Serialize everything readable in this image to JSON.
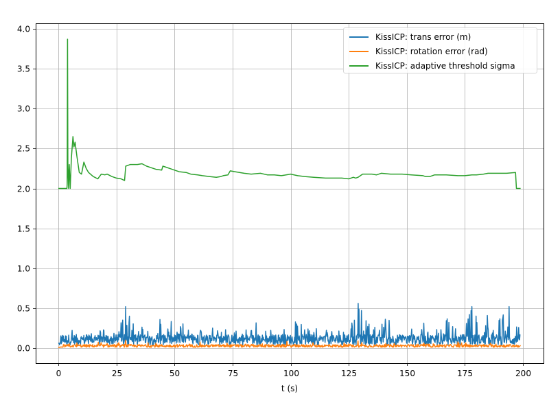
{
  "chart_data": {
    "type": "line",
    "title": "",
    "xlabel": "t (s)",
    "ylabel": "",
    "xlim": [
      -10,
      209
    ],
    "ylim": [
      -0.2,
      4.1
    ],
    "grid": true,
    "legend_position": "upper right",
    "x_ticks": [
      "0",
      "25",
      "50",
      "75",
      "100",
      "125",
      "150",
      "175",
      "200"
    ],
    "y_ticks": [
      "0.0",
      "0.5",
      "1.0",
      "1.5",
      "2.0",
      "2.5",
      "3.0",
      "3.5",
      "4.0"
    ],
    "series": [
      {
        "name": "KissICP: trans error (m)",
        "color": "#1f77b4",
        "description": "noisy signal, mostly 0.05-0.35, peaks ~0.52 at t~29, ~0.56 at t~129, ~0.52 at t~178 and t~194",
        "x": [
          0,
          5,
          10,
          15,
          20,
          25,
          29,
          35,
          40,
          45,
          50,
          55,
          60,
          65,
          70,
          75,
          80,
          85,
          90,
          95,
          100,
          105,
          110,
          115,
          120,
          125,
          129,
          135,
          140,
          145,
          150,
          155,
          160,
          165,
          170,
          175,
          178,
          185,
          190,
          194,
          199
        ],
        "values": [
          0.05,
          0.28,
          0.3,
          0.22,
          0.25,
          0.2,
          0.52,
          0.3,
          0.22,
          0.43,
          0.25,
          0.3,
          0.2,
          0.36,
          0.3,
          0.2,
          0.25,
          0.3,
          0.2,
          0.3,
          0.38,
          0.32,
          0.2,
          0.25,
          0.3,
          0.28,
          0.56,
          0.3,
          0.38,
          0.25,
          0.22,
          0.42,
          0.28,
          0.33,
          0.38,
          0.3,
          0.52,
          0.38,
          0.42,
          0.52,
          0.38
        ]
      },
      {
        "name": "KissICP: rotation error (rad)",
        "color": "#ff7f0e",
        "description": "small noisy signal near 0.0-0.05, occasional peaks ~0.1",
        "x": [
          0,
          5,
          10,
          20,
          29,
          40,
          60,
          80,
          100,
          120,
          129,
          140,
          160,
          180,
          199
        ],
        "values": [
          0.01,
          0.04,
          0.03,
          0.03,
          0.1,
          0.04,
          0.03,
          0.03,
          0.04,
          0.03,
          0.09,
          0.03,
          0.05,
          0.04,
          0.02
        ]
      },
      {
        "name": "KissICP: adaptive threshold sigma",
        "color": "#2ca02c",
        "x": [
          0,
          3.7,
          3.8,
          3.95,
          4.1,
          4.4,
          4.7,
          5.1,
          5.6,
          6.3,
          6.7,
          7.2,
          8,
          9,
          10,
          11,
          12,
          13,
          15,
          17,
          18.5,
          20,
          21,
          23,
          25,
          27,
          28.5,
          29,
          30,
          31,
          32,
          34,
          36,
          38,
          40,
          42,
          44.5,
          45,
          46,
          48,
          50,
          52,
          55,
          57,
          60,
          62,
          65,
          68,
          70,
          71,
          73,
          74,
          76,
          80,
          83,
          87,
          90,
          93,
          96,
          100,
          103,
          106,
          110,
          115,
          120,
          122,
          125,
          126,
          127,
          128,
          129,
          131,
          135,
          137,
          139,
          143,
          148,
          152,
          157,
          158,
          160,
          162,
          167,
          172,
          175,
          178,
          180,
          183,
          185,
          188,
          190,
          193,
          196.8,
          197.2,
          199
        ],
        "values": [
          2.0,
          2.0,
          2.05,
          3.87,
          2.3,
          2.0,
          2.3,
          2.0,
          2.38,
          2.65,
          2.52,
          2.58,
          2.4,
          2.2,
          2.18,
          2.33,
          2.25,
          2.2,
          2.15,
          2.12,
          2.18,
          2.17,
          2.18,
          2.15,
          2.13,
          2.12,
          2.1,
          2.28,
          2.29,
          2.3,
          2.3,
          2.3,
          2.31,
          2.28,
          2.26,
          2.24,
          2.23,
          2.28,
          2.27,
          2.25,
          2.23,
          2.21,
          2.2,
          2.18,
          2.17,
          2.16,
          2.15,
          2.14,
          2.15,
          2.16,
          2.17,
          2.22,
          2.21,
          2.19,
          2.18,
          2.19,
          2.17,
          2.17,
          2.16,
          2.18,
          2.16,
          2.15,
          2.14,
          2.13,
          2.13,
          2.13,
          2.12,
          2.13,
          2.14,
          2.13,
          2.14,
          2.18,
          2.18,
          2.17,
          2.19,
          2.18,
          2.18,
          2.17,
          2.16,
          2.15,
          2.15,
          2.17,
          2.17,
          2.16,
          2.16,
          2.17,
          2.17,
          2.18,
          2.19,
          2.19,
          2.19,
          2.19,
          2.2,
          2.0,
          2.0
        ]
      }
    ]
  },
  "legend": {
    "items": [
      {
        "label": "KissICP: trans error (m)",
        "color": "#1f77b4"
      },
      {
        "label": "KissICP: rotation error (rad)",
        "color": "#ff7f0e"
      },
      {
        "label": "KissICP: adaptive threshold sigma",
        "color": "#2ca02c"
      }
    ]
  }
}
